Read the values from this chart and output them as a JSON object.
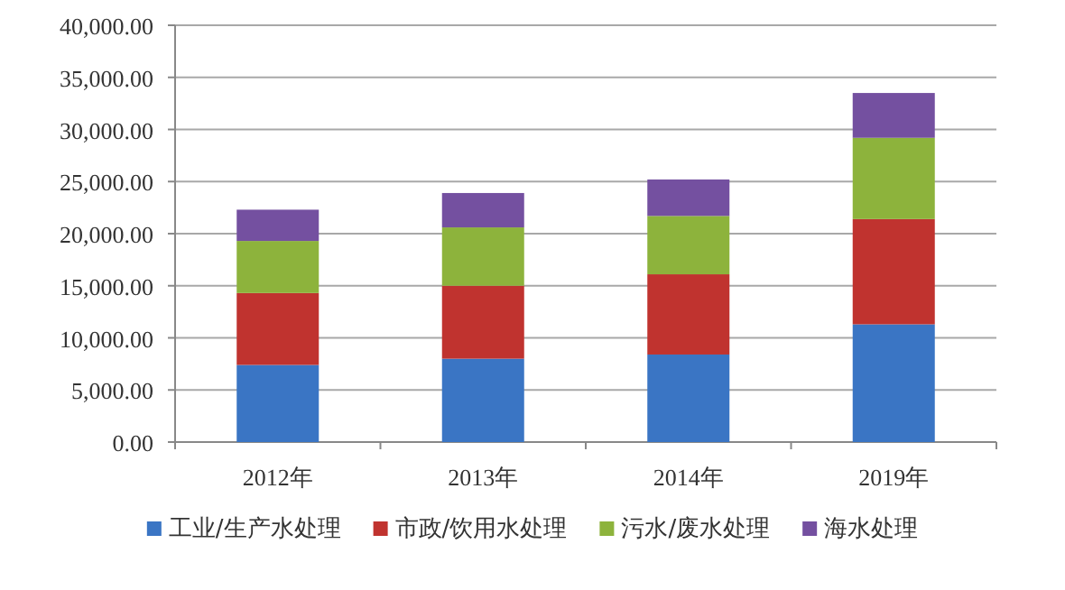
{
  "chart_data": {
    "type": "bar",
    "stacked": true,
    "categories": [
      "2012年",
      "2013年",
      "2014年",
      "2019年"
    ],
    "series": [
      {
        "name": "工业/生产水处理",
        "color": "#3a75c4",
        "values": [
          7400,
          8000,
          8400,
          11300
        ]
      },
      {
        "name": "市政/饮用水处理",
        "color": "#c0332f",
        "values": [
          6900,
          7000,
          7700,
          10100
        ]
      },
      {
        "name": "污水/废水处理",
        "color": "#8db33c",
        "values": [
          5000,
          5600,
          5600,
          7800
        ]
      },
      {
        "name": "海水处理",
        "color": "#7450a0",
        "values": [
          3000,
          3300,
          3500,
          4300
        ]
      }
    ],
    "ylim": [
      0,
      40000
    ],
    "yticks": [
      {
        "value": 0,
        "label": "0.00"
      },
      {
        "value": 5000,
        "label": "5,000.00"
      },
      {
        "value": 10000,
        "label": "10,000.00"
      },
      {
        "value": 15000,
        "label": "15,000.00"
      },
      {
        "value": 20000,
        "label": "20,000.00"
      },
      {
        "value": 25000,
        "label": "25,000.00"
      },
      {
        "value": 30000,
        "label": "30,000.00"
      },
      {
        "value": 35000,
        "label": "35,000.00"
      },
      {
        "value": 40000,
        "label": "40,000.00"
      }
    ],
    "grid": "y",
    "legend": "bottom"
  }
}
